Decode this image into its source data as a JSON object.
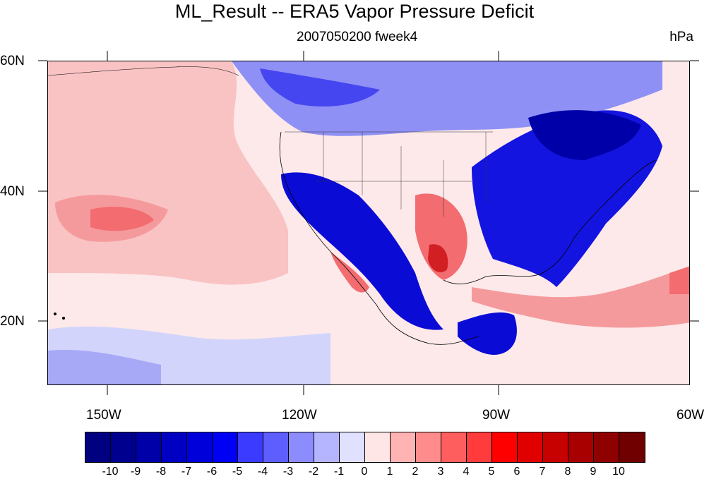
{
  "title": "ML_Result -- ERA5 Vapor Pressure Deficit",
  "subtitle": "2007050200 fweek4",
  "units": "hPa",
  "lat_labels": [
    "60N",
    "40N",
    "20N"
  ],
  "lon_labels": [
    "150W",
    "120W",
    "90W",
    "60W"
  ],
  "colorbar": {
    "labels": [
      "-10",
      "-9",
      "-8",
      "-7",
      "-6",
      "-5",
      "-4",
      "-3",
      "-2",
      "-1",
      "0",
      "1",
      "2",
      "3",
      "4",
      "5",
      "6",
      "7",
      "8",
      "9",
      "10"
    ],
    "colors": [
      "#000080",
      "#00008f",
      "#0000a8",
      "#0000c2",
      "#0000db",
      "#0000f5",
      "#3b3bff",
      "#5e5eff",
      "#8c8cff",
      "#b5b5ff",
      "#e0e0ff",
      "#ffe6e6",
      "#ffb3b3",
      "#ff8c8c",
      "#ff5e5e",
      "#ff3b3b",
      "#ff0000",
      "#e00000",
      "#c70000",
      "#a80000",
      "#8f0000",
      "#700000"
    ]
  },
  "map": {
    "lon_range": [
      -160,
      -60
    ],
    "lat_range": [
      10,
      60
    ]
  }
}
